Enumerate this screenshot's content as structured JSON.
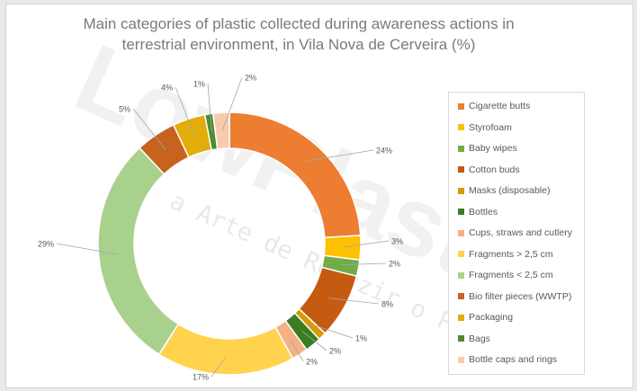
{
  "title_lines": [
    "Main categories of plastic collected during awareness actions  in",
    "terrestrial environment, in Vila Nova de Cerveira (%)"
  ],
  "watermark": {
    "brand": "LowPlast",
    "tagline": "a Arte de Reduzir o Plástico"
  },
  "chart_data": {
    "type": "pie",
    "style": "doughnut",
    "title": "Main categories of plastic collected during awareness actions  in terrestrial environment, in Vila Nova de Cerveira (%)",
    "legend_position": "right",
    "unit": "%",
    "slices": [
      {
        "label": "Cigarette butts",
        "value": 24,
        "data_label": "24%",
        "color": "#ed7d31"
      },
      {
        "label": "Styrofoam",
        "value": 3,
        "data_label": "3%",
        "color": "#ffc000"
      },
      {
        "label": "Baby wipes",
        "value": 2,
        "data_label": "2%",
        "color": "#70ad47"
      },
      {
        "label": "Cotton buds",
        "value": 8,
        "data_label": "8%",
        "color": "#c55a11"
      },
      {
        "label": "Masks (disposable)",
        "value": 1,
        "data_label": "1%",
        "color": "#d99a06"
      },
      {
        "label": "Bottles",
        "value": 2,
        "data_label": "2%",
        "color": "#3b7d23"
      },
      {
        "label": "Cups, straws and cutlery",
        "value": 2,
        "data_label": "2%",
        "color": "#f4b183"
      },
      {
        "label": "Fragments > 2,5 cm",
        "value": 17,
        "data_label": "17%",
        "color": "#ffd34e"
      },
      {
        "label": "Fragments < 2,5 cm",
        "value": 29,
        "data_label": "29%",
        "color": "#a9d18e"
      },
      {
        "label": "Bio filter pieces (WWTP)",
        "value": 5,
        "data_label": "5%",
        "color": "#c8621f"
      },
      {
        "label": "Packaging",
        "value": 4,
        "data_label": "4%",
        "color": "#e2ac0b"
      },
      {
        "label": "Bags",
        "value": 1,
        "data_label": "1%",
        "color": "#4e8b31"
      },
      {
        "label": "Bottle caps and rings",
        "value": 2,
        "data_label": "2%",
        "color": "#f8cbad"
      }
    ]
  }
}
